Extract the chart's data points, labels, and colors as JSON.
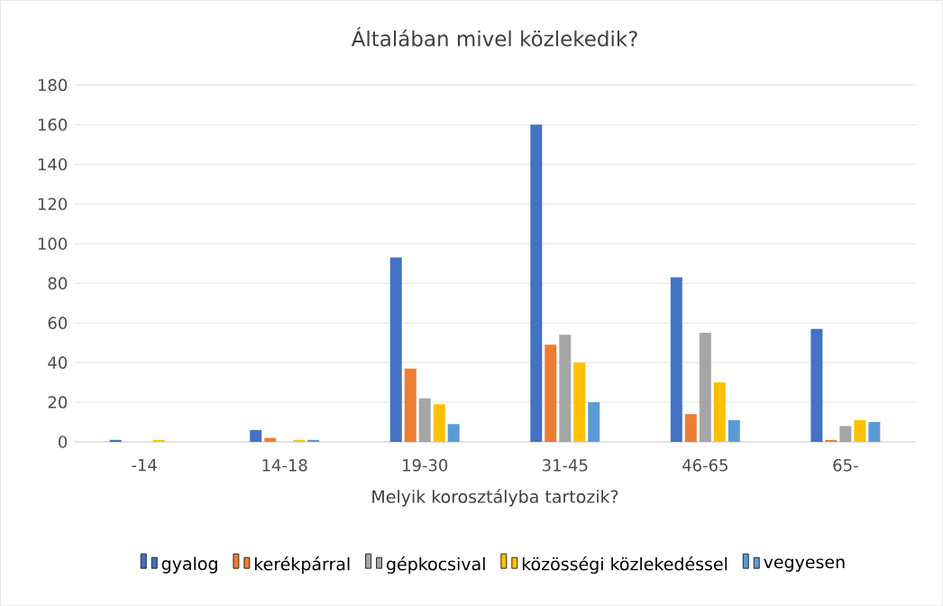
{
  "chart_data": {
    "type": "bar",
    "title": "Általában mivel közlekedik?",
    "xlabel": "Melyik korosztályba tartozik?",
    "categories": [
      "-14",
      "14-18",
      "19-30",
      "31-45",
      "46-65",
      "65-"
    ],
    "series": [
      {
        "name": "gyalog",
        "color": "#4472c4",
        "values": [
          1,
          6,
          93,
          160,
          83,
          57
        ]
      },
      {
        "name": "kerékpárral",
        "color": "#ed7d31",
        "values": [
          0,
          2,
          37,
          49,
          14,
          1
        ]
      },
      {
        "name": "gépkocsival",
        "color": "#a5a5a5",
        "values": [
          0,
          0,
          22,
          54,
          55,
          8
        ]
      },
      {
        "name": "közösségi közlekedéssel",
        "color": "#ffc000",
        "values": [
          1,
          1,
          19,
          40,
          30,
          11
        ]
      },
      {
        "name": "vegyesen",
        "color": "#5b9bd5",
        "values": [
          0,
          1,
          9,
          20,
          11,
          10
        ]
      }
    ],
    "ylim": [
      0,
      180
    ],
    "yticks": [
      0,
      20,
      40,
      60,
      80,
      100,
      120,
      140,
      160,
      180
    ],
    "grid": "y",
    "legend": "bottom"
  }
}
